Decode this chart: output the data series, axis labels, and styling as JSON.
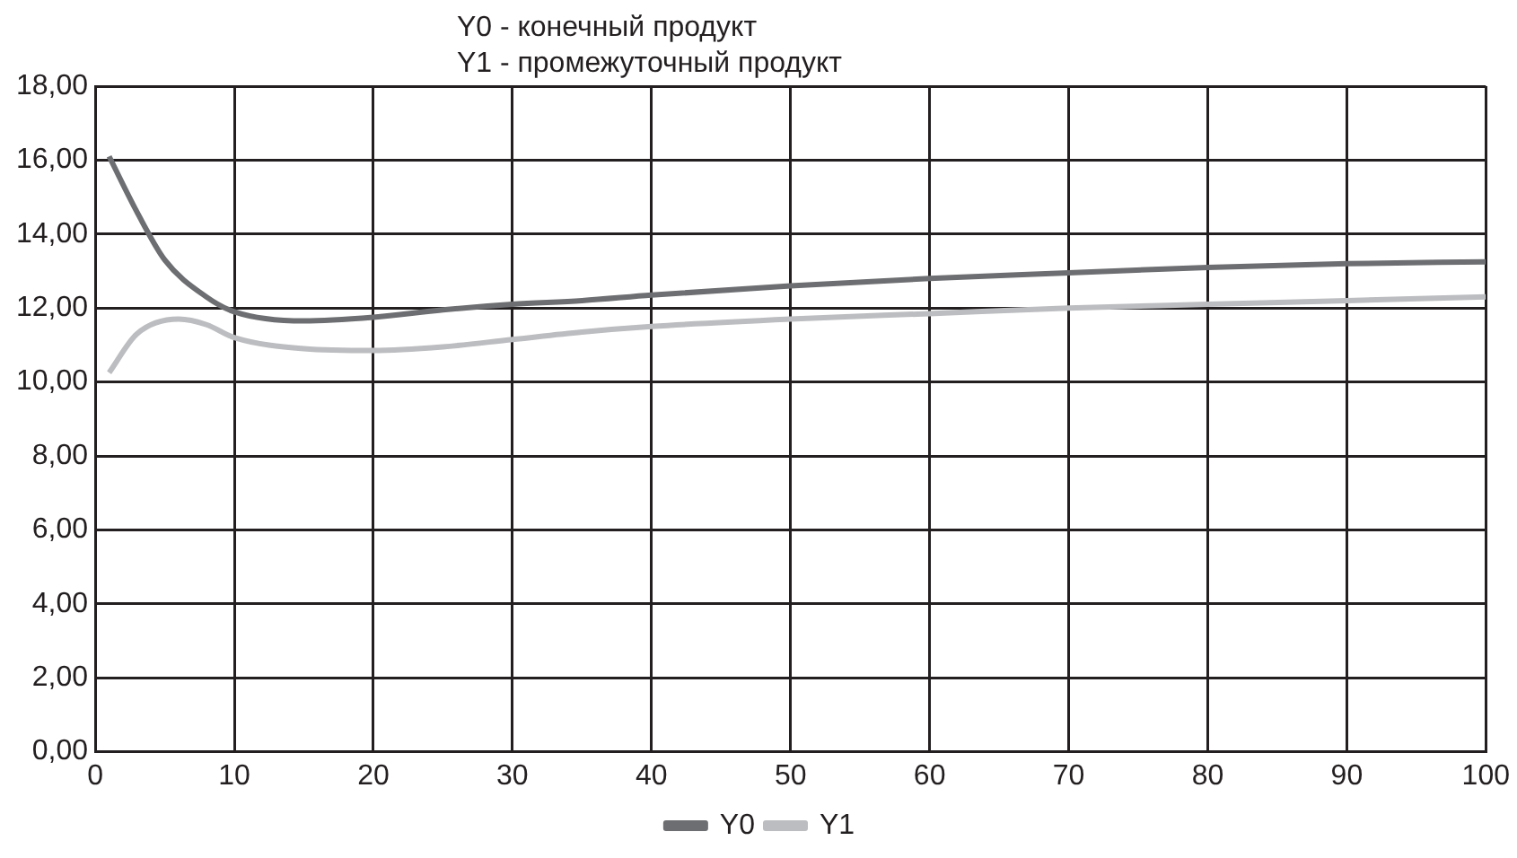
{
  "chart_data": {
    "type": "line",
    "title": "Y0 - конечный продукт",
    "subtitle": "Y1 - промежуточный продукт",
    "x": [
      1,
      3,
      5,
      8,
      10,
      15,
      20,
      25,
      30,
      35,
      40,
      50,
      60,
      70,
      80,
      90,
      100
    ],
    "series": [
      {
        "name": "Y0",
        "color": "#6d6e71",
        "values": [
          16.1,
          14.6,
          13.3,
          12.3,
          11.9,
          11.65,
          11.75,
          11.95,
          12.1,
          12.2,
          12.35,
          12.6,
          12.8,
          12.95,
          13.1,
          13.2,
          13.25
        ]
      },
      {
        "name": "Y1",
        "color": "#bcbdc0",
        "x": [
          1,
          3,
          6,
          8,
          10,
          15,
          20,
          25,
          30,
          35,
          40,
          50,
          60,
          70,
          80,
          90,
          100
        ],
        "values": [
          10.25,
          11.3,
          11.7,
          11.55,
          11.2,
          10.9,
          10.85,
          10.95,
          11.15,
          11.35,
          11.5,
          11.7,
          11.85,
          12.0,
          12.1,
          12.2,
          12.3
        ]
      }
    ],
    "xlim": [
      0,
      100
    ],
    "xticks": [
      0,
      10,
      20,
      30,
      40,
      50,
      60,
      70,
      80,
      90,
      100
    ],
    "ylim": [
      0,
      18
    ],
    "yticks": [
      {
        "value": 0,
        "label": "0,00"
      },
      {
        "value": 2,
        "label": "2,00"
      },
      {
        "value": 4,
        "label": "4,00"
      },
      {
        "value": 6,
        "label": "6,00"
      },
      {
        "value": 8,
        "label": "8,00"
      },
      {
        "value": 10,
        "label": "10,00"
      },
      {
        "value": 12,
        "label": "12,00"
      },
      {
        "value": 14,
        "label": "14,00"
      },
      {
        "value": 16,
        "label": "16,00"
      },
      {
        "value": 18,
        "label": "18,00"
      }
    ],
    "grid": true,
    "legend": "bottom",
    "marker": "none",
    "line_style": "solid"
  }
}
